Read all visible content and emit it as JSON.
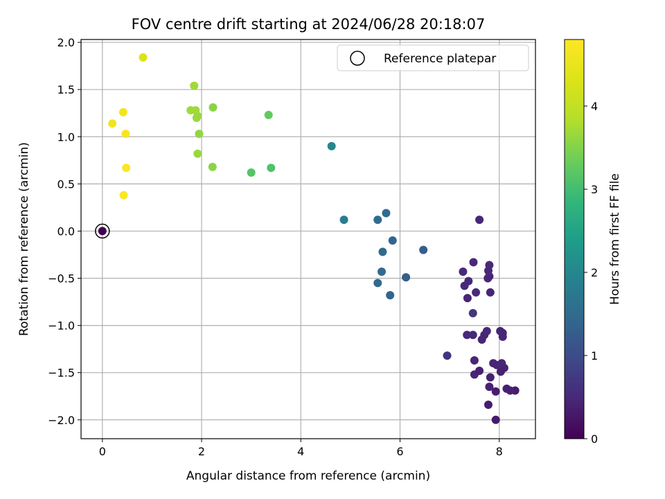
{
  "chart_data": {
    "type": "scatter",
    "title": "FOV centre drift starting at 2024/06/28 20:18:07",
    "xlabel": "Angular distance from reference (arcmin)",
    "ylabel": "Rotation from reference (arcmin)",
    "xlim": [
      -0.43,
      8.73
    ],
    "ylim": [
      -2.2,
      2.03
    ],
    "x_ticks": [
      0,
      2,
      4,
      6,
      8
    ],
    "x_tick_labels": [
      "0",
      "2",
      "4",
      "6",
      "8"
    ],
    "y_ticks": [
      -2.0,
      -1.5,
      -1.0,
      -0.5,
      0.0,
      0.5,
      1.0,
      1.5,
      2.0
    ],
    "y_tick_labels": [
      "−2.0",
      "−1.5",
      "−1.0",
      "−0.5",
      "0.0",
      "0.5",
      "1.0",
      "1.5",
      "2.0"
    ],
    "grid": true,
    "legend": {
      "position": "top-right",
      "entries": [
        "Reference platepar"
      ]
    },
    "reference_point": {
      "name": "Reference platepar",
      "x": 0,
      "y": 0,
      "hours": 0
    },
    "colorbar": {
      "label": "Hours from first FF file",
      "colormap": "viridis",
      "range": [
        0,
        4.8
      ],
      "ticks": [
        0,
        1,
        2,
        3,
        4
      ],
      "tick_labels": [
        "0",
        "1",
        "2",
        "3",
        "4"
      ]
    },
    "points": [
      {
        "x": 0.0,
        "y": 0.0,
        "h": 0.0
      },
      {
        "x": 7.93,
        "y": -2.0,
        "h": 0.3
      },
      {
        "x": 7.78,
        "y": -1.84,
        "h": 0.35
      },
      {
        "x": 8.32,
        "y": -1.69,
        "h": 0.35
      },
      {
        "x": 8.22,
        "y": -1.69,
        "h": 0.4
      },
      {
        "x": 8.15,
        "y": -1.67,
        "h": 0.4
      },
      {
        "x": 7.93,
        "y": -1.7,
        "h": 0.35
      },
      {
        "x": 7.8,
        "y": -1.65,
        "h": 0.4
      },
      {
        "x": 7.82,
        "y": -1.55,
        "h": 0.4
      },
      {
        "x": 7.5,
        "y": -1.52,
        "h": 0.45
      },
      {
        "x": 7.6,
        "y": -1.48,
        "h": 0.4
      },
      {
        "x": 8.03,
        "y": -1.49,
        "h": 0.4
      },
      {
        "x": 8.1,
        "y": -1.45,
        "h": 0.4
      },
      {
        "x": 7.88,
        "y": -1.4,
        "h": 0.45
      },
      {
        "x": 7.95,
        "y": -1.42,
        "h": 0.45
      },
      {
        "x": 8.05,
        "y": -1.4,
        "h": 0.45
      },
      {
        "x": 7.5,
        "y": -1.37,
        "h": 0.45
      },
      {
        "x": 6.95,
        "y": -1.32,
        "h": 0.65
      },
      {
        "x": 7.65,
        "y": -1.15,
        "h": 0.45
      },
      {
        "x": 7.7,
        "y": -1.1,
        "h": 0.45
      },
      {
        "x": 7.35,
        "y": -1.1,
        "h": 0.5
      },
      {
        "x": 7.47,
        "y": -1.1,
        "h": 0.5
      },
      {
        "x": 7.75,
        "y": -1.06,
        "h": 0.5
      },
      {
        "x": 8.02,
        "y": -1.06,
        "h": 0.45
      },
      {
        "x": 8.07,
        "y": -1.08,
        "h": 0.45
      },
      {
        "x": 8.07,
        "y": -1.12,
        "h": 0.45
      },
      {
        "x": 7.47,
        "y": -0.87,
        "h": 0.7
      },
      {
        "x": 7.36,
        "y": -0.71,
        "h": 0.45
      },
      {
        "x": 7.82,
        "y": -0.65,
        "h": 0.45
      },
      {
        "x": 7.53,
        "y": -0.65,
        "h": 0.5
      },
      {
        "x": 7.3,
        "y": -0.58,
        "h": 0.5
      },
      {
        "x": 7.38,
        "y": -0.53,
        "h": 0.5
      },
      {
        "x": 7.77,
        "y": -0.5,
        "h": 0.5
      },
      {
        "x": 7.8,
        "y": -0.48,
        "h": 0.45
      },
      {
        "x": 7.27,
        "y": -0.43,
        "h": 0.5
      },
      {
        "x": 7.78,
        "y": -0.42,
        "h": 0.5
      },
      {
        "x": 7.8,
        "y": -0.36,
        "h": 0.5
      },
      {
        "x": 7.48,
        "y": -0.33,
        "h": 0.5
      },
      {
        "x": 7.6,
        "y": 0.12,
        "h": 0.45
      },
      {
        "x": 5.8,
        "y": -0.68,
        "h": 1.4
      },
      {
        "x": 5.55,
        "y": -0.55,
        "h": 1.5
      },
      {
        "x": 6.12,
        "y": -0.49,
        "h": 1.3
      },
      {
        "x": 5.63,
        "y": -0.43,
        "h": 1.5
      },
      {
        "x": 5.65,
        "y": -0.22,
        "h": 1.5
      },
      {
        "x": 6.47,
        "y": -0.2,
        "h": 1.3
      },
      {
        "x": 5.85,
        "y": -0.1,
        "h": 1.4
      },
      {
        "x": 5.55,
        "y": 0.12,
        "h": 1.5
      },
      {
        "x": 5.72,
        "y": 0.19,
        "h": 1.5
      },
      {
        "x": 4.87,
        "y": 0.12,
        "h": 1.8
      },
      {
        "x": 4.62,
        "y": 0.9,
        "h": 2.0
      },
      {
        "x": 3.0,
        "y": 0.62,
        "h": 3.15
      },
      {
        "x": 3.4,
        "y": 0.67,
        "h": 3.1
      },
      {
        "x": 3.35,
        "y": 1.23,
        "h": 3.25
      },
      {
        "x": 2.22,
        "y": 0.68,
        "h": 3.55
      },
      {
        "x": 1.92,
        "y": 0.82,
        "h": 3.65
      },
      {
        "x": 1.95,
        "y": 1.03,
        "h": 3.6
      },
      {
        "x": 1.9,
        "y": 1.2,
        "h": 3.65
      },
      {
        "x": 1.92,
        "y": 1.22,
        "h": 3.65
      },
      {
        "x": 1.78,
        "y": 1.28,
        "h": 3.7
      },
      {
        "x": 1.88,
        "y": 1.28,
        "h": 3.7
      },
      {
        "x": 2.23,
        "y": 1.31,
        "h": 3.55
      },
      {
        "x": 1.85,
        "y": 1.54,
        "h": 3.7
      },
      {
        "x": 0.82,
        "y": 1.84,
        "h": 4.3
      },
      {
        "x": 0.43,
        "y": 0.38,
        "h": 4.75
      },
      {
        "x": 0.48,
        "y": 0.67,
        "h": 4.75
      },
      {
        "x": 0.47,
        "y": 1.03,
        "h": 4.7
      },
      {
        "x": 0.2,
        "y": 1.14,
        "h": 4.6
      },
      {
        "x": 0.42,
        "y": 1.26,
        "h": 4.6
      }
    ]
  }
}
